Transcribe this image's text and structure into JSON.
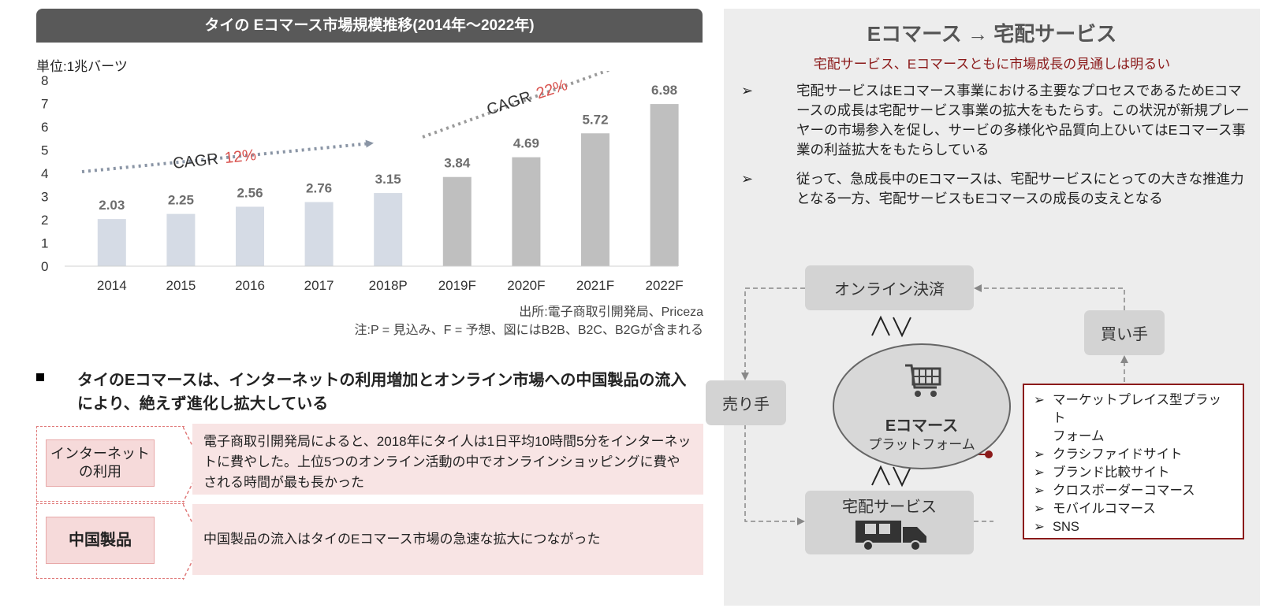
{
  "chart_title": "タイの Eコマース市場規模推移(2014年〜2022年)",
  "unit_label": "単位:1兆バーツ",
  "chart_data": {
    "type": "bar",
    "categories": [
      "2014",
      "2015",
      "2016",
      "2017",
      "2018P",
      "2019F",
      "2020F",
      "2021F",
      "2022F"
    ],
    "values": [
      2.03,
      2.25,
      2.56,
      2.76,
      3.15,
      3.84,
      4.69,
      5.72,
      6.98
    ],
    "value_labels": [
      "2.03",
      "2.25",
      "2.56",
      "2.76",
      "3.15",
      "3.84",
      "4.69",
      "5.72",
      "6.98"
    ],
    "y_ticks": [
      "0",
      "1",
      "2",
      "3",
      "4",
      "5",
      "6",
      "7",
      "8"
    ],
    "ylim": [
      0,
      8
    ],
    "colors": {
      "actual": "#d5dbe5",
      "forecast": "#bfbfbf"
    },
    "cagr_annotations": [
      {
        "label": "CAGR",
        "value": "12%"
      },
      {
        "label": "CAGR",
        "value": "22%"
      }
    ]
  },
  "source_line": "出所:電子商取引開発局、Priceza",
  "note_line": "注:P = 見込み、F = 予想、図にはB2B、B2C、B2Gが含まれる",
  "main_bullet": "タイのEコマースは、インターネットの利用増加とオンライン市場への中国製品の流入により、絶えず進化し拡大している",
  "factors": [
    {
      "label_lines": [
        "インターネット",
        "の利用"
      ],
      "description": "電子商取引開発局によると、2018年にタイ人は1日平均10時間5分をインターネットに費やした。上位5つのオンライン活動の中でオンラインショッピングに費やされる時間が最も長かった"
    },
    {
      "label_lines": [
        "中国製品"
      ],
      "description": "中国製品の流入はタイのEコマース市場の急速な拡大につながった"
    }
  ],
  "right_panel": {
    "title": "Eコマース → 宅配サービス",
    "subtitle": "宅配サービス、Eコマースともに市場成長の見通しは明るい",
    "bullets": [
      "宅配サービスはEコマース事業における主要なプロセスであるためEコマースの成長は宅配サービス事業の拡大をもたらす。この状況が新規プレーヤーの市場参入を促し、サービの多様化や品質向上ひいてはEコマース事業の利益拡大をもたらしている",
      "従って、急成長中のEコマースは、宅配サービスにとっての大きな推進力となる一方、宅配サービスもEコマースの成長の支えとなる"
    ],
    "bullet_marker": "➢",
    "diagram": {
      "online_payment": "オンライン決済",
      "buyer": "買い手",
      "seller": "売り手",
      "ecommerce_title": "Eコマース",
      "ecommerce_sub": "プラットフォーム",
      "delivery": "宅配サービス",
      "platform_types": [
        "マーケットプレイス型プラット",
        "フォーム",
        "クラシファイドサイト",
        "ブランド比較サイト",
        "クロスボーダーコマース",
        "モバイルコマース",
        "SNS"
      ],
      "platform_type_marker": "➢",
      "accent_color": "#8b1a1a"
    }
  }
}
